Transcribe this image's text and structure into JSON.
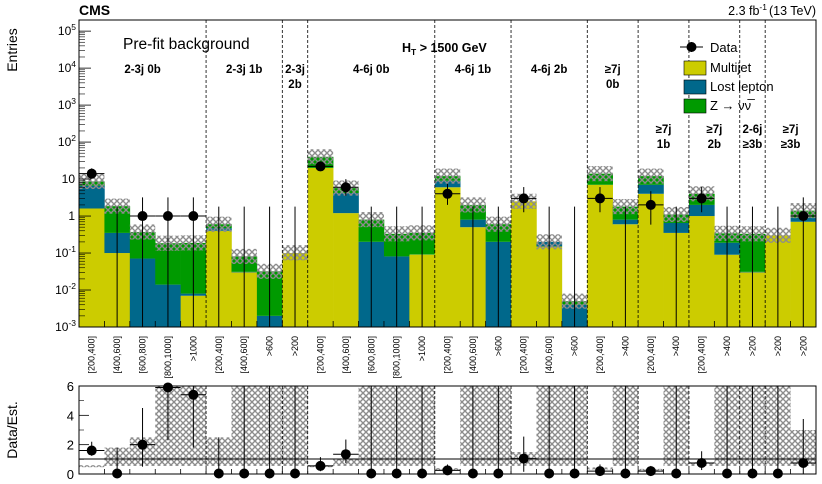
{
  "header": {
    "experiment": "CMS",
    "lumi": "2.3 fb",
    "lumi_sup": "-1",
    "energy": "(13 TeV)"
  },
  "title": "Pre-fit background",
  "ht_label": {
    "prefix": "H",
    "sub": "T",
    "rest": " > 1500 GeV"
  },
  "chart_data": {
    "type": "bar",
    "stacked": true,
    "ylabel": "Entries",
    "ratio_ylabel": "Data/Est.",
    "yscale": "log",
    "ylim": [
      0.001,
      200000
    ],
    "ratio_ylim": [
      0,
      6
    ],
    "ratio_ticks": [
      "0",
      "2",
      "4",
      "6"
    ],
    "y_ticks": [
      {
        "base": "10",
        "exp": "-3"
      },
      {
        "base": "10",
        "exp": "-2"
      },
      {
        "base": "10",
        "exp": "-1"
      },
      {
        "base": "1",
        "exp": ""
      },
      {
        "base": "10",
        "exp": ""
      },
      {
        "base": "10",
        "exp": "2"
      },
      {
        "base": "10",
        "exp": "3"
      },
      {
        "base": "10",
        "exp": "4"
      },
      {
        "base": "10",
        "exp": "5"
      }
    ],
    "legend": [
      {
        "name": "Data",
        "type": "marker",
        "color": "#000000"
      },
      {
        "name": "Multijet",
        "type": "fill",
        "color": "#cccc00"
      },
      {
        "name": "Lost lepton",
        "type": "fill",
        "color": "#00688b"
      },
      {
        "name": "Z → νν̅",
        "type": "fill",
        "color": "#009a00"
      }
    ],
    "colors": {
      "multijet": "#cccc00",
      "lostlepton": "#00688b",
      "znunu": "#009a00",
      "unc_hatch": "#9a9a9a"
    },
    "categories": [
      "[200,400]",
      "[400,600]",
      "[600,800]",
      "[800,1000]",
      ">1000",
      "[200,400]",
      "[400,600]",
      ">600",
      ">200",
      "[200,400]",
      "[400,600]",
      "[600,800]",
      "[800,1000]",
      ">1000",
      "[200,400]",
      "[400,600]",
      ">600",
      "[200,400]",
      "[400,600]",
      ">600",
      "[200,400]",
      ">400",
      "[200,400]",
      ">400",
      "[200,400]",
      ">400",
      ">200",
      ">200",
      ">200"
    ],
    "regions": [
      {
        "label": [
          "2-3j 0b"
        ],
        "start": 0,
        "end": 4
      },
      {
        "label": [
          "2-3j 1b"
        ],
        "start": 5,
        "end": 7
      },
      {
        "label": [
          "2-3j",
          "2b"
        ],
        "start": 8,
        "end": 8
      },
      {
        "label": [
          "4-6j 0b"
        ],
        "start": 9,
        "end": 13
      },
      {
        "label": [
          "4-6j 1b"
        ],
        "start": 14,
        "end": 16
      },
      {
        "label": [
          "4-6j 2b"
        ],
        "start": 17,
        "end": 19
      },
      {
        "label": [
          "≥7j",
          "0b"
        ],
        "start": 20,
        "end": 21
      },
      {
        "label": [
          "≥7j",
          "1b"
        ],
        "start": 22,
        "end": 23
      },
      {
        "label": [
          "≥7j",
          "2b"
        ],
        "start": 24,
        "end": 25
      },
      {
        "label": [
          "2-6j",
          "≥3b"
        ],
        "start": 26,
        "end": 26
      },
      {
        "label": [
          "≥7j",
          "≥3b"
        ],
        "start": 27,
        "end": 28
      }
    ],
    "series": [
      {
        "name": "Multijet",
        "values": [
          1.6,
          0.1,
          0.001,
          0.001,
          0.007,
          0.4,
          0.03,
          0.001,
          0.1,
          20,
          1.2,
          0.001,
          0.001,
          0.09,
          6,
          0.5,
          0.001,
          2.5,
          0.15,
          0.001,
          7,
          0.6,
          4,
          0.35,
          1.0,
          0.09,
          0.03,
          0.3,
          0.7
        ]
      },
      {
        "name": "Lost lepton",
        "values": [
          5,
          0.25,
          0.07,
          0.013,
          0.001,
          0.07,
          0.001,
          0.001,
          0.001,
          0.001,
          3,
          0.2,
          0.08,
          0.001,
          3,
          0.3,
          0.2,
          0.001,
          0.05,
          0.003,
          0.001,
          0.2,
          3,
          0.3,
          1.0,
          0.1,
          0.001,
          0.001,
          0.2
        ]
      },
      {
        "name": "Z → νν̅",
        "values": [
          2,
          1.5,
          0.3,
          0.17,
          0.18,
          0.13,
          0.05,
          0.03,
          0.001,
          20,
          1.5,
          0.6,
          0.25,
          0.26,
          3,
          1.2,
          0.4,
          0.001,
          0.001,
          0.001,
          7,
          1.0,
          5,
          0.45,
          2.0,
          0.15,
          0.3,
          0.001,
          0.5
        ]
      }
    ],
    "data": [
      14,
      0,
      1,
      1,
      1,
      0,
      0,
      0,
      0,
      22,
      6,
      0,
      0,
      0,
      4,
      0,
      0,
      3,
      0,
      0,
      3,
      0,
      2,
      0,
      3,
      0,
      0,
      0,
      1
    ],
    "ratio": [
      1.6,
      0,
      2,
      5.9,
      5.4,
      0,
      0,
      0,
      0,
      0.55,
      1.35,
      0,
      0,
      0,
      0.25,
      0,
      0,
      1.05,
      0,
      0,
      0.2,
      0,
      0.2,
      0,
      0.75,
      0,
      0,
      0,
      0.75
    ],
    "ratio_err_high": [
      0.6,
      1.8,
      2.5,
      6,
      6,
      2.5,
      6,
      6,
      6,
      0.6,
      1.0,
      6,
      6,
      6,
      0.4,
      6,
      6,
      1.5,
      6,
      6,
      0.45,
      6,
      0.35,
      6,
      0.8,
      6,
      6,
      6,
      3
    ]
  }
}
